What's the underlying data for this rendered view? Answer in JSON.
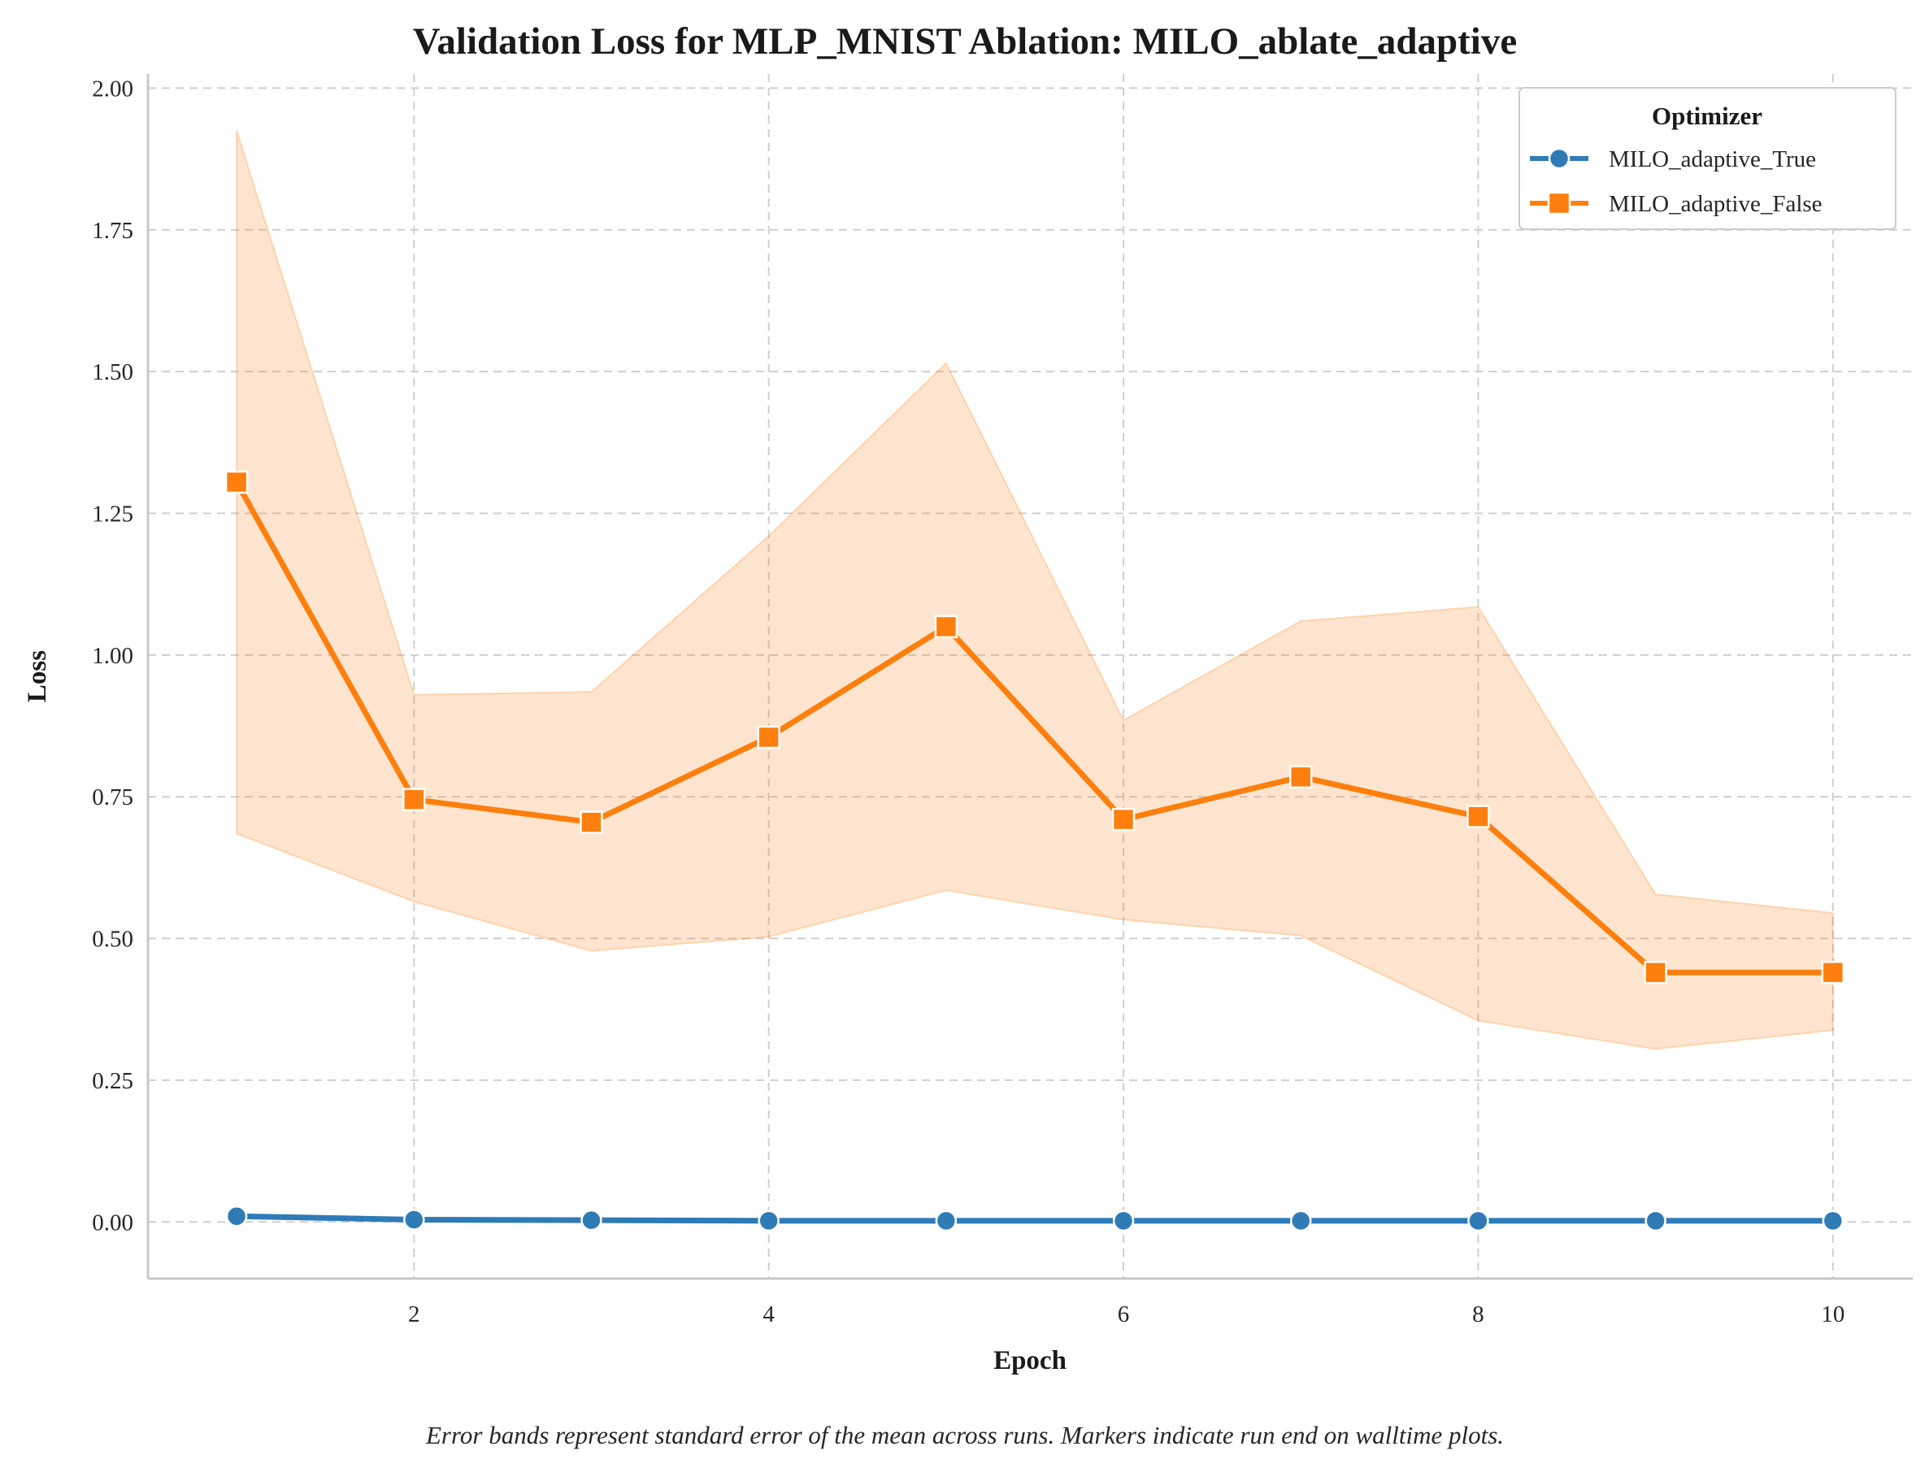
{
  "chart_data": {
    "type": "line",
    "title": "Validation Loss for MLP_MNIST Ablation: MILO_ablate_adaptive",
    "xlabel": "Epoch",
    "ylabel": "Loss",
    "xlim": [
      0.5,
      10.45
    ],
    "ylim": [
      -0.1,
      2.025
    ],
    "x_ticks": [
      2,
      4,
      6,
      8,
      10
    ],
    "y_ticks": [
      0.0,
      0.25,
      0.5,
      0.75,
      1.0,
      1.25,
      1.5,
      1.75,
      2.0
    ],
    "y_tick_labels": [
      "0.00",
      "0.25",
      "0.50",
      "0.75",
      "1.00",
      "1.25",
      "1.50",
      "1.75",
      "2.00"
    ],
    "x_tick_labels": [
      "2",
      "4",
      "6",
      "8",
      "10"
    ],
    "grid": true,
    "legend": {
      "title": "Optimizer",
      "placement": "top-right"
    },
    "x": [
      1,
      2,
      3,
      4,
      5,
      6,
      7,
      8,
      9,
      10
    ],
    "series": [
      {
        "name": "MILO_adaptive_True",
        "color": "#2f7bb6",
        "marker": "circle",
        "values": [
          0.01,
          0.004,
          0.003,
          0.002,
          0.002,
          0.002,
          0.002,
          0.002,
          0.002,
          0.002
        ],
        "lower": [
          0.008,
          0.003,
          0.002,
          0.001,
          0.001,
          0.001,
          0.001,
          0.001,
          0.001,
          0.001
        ],
        "upper": [
          0.012,
          0.005,
          0.004,
          0.003,
          0.003,
          0.003,
          0.003,
          0.003,
          0.003,
          0.003
        ]
      },
      {
        "name": "MILO_adaptive_False",
        "color": "#ff7f0e",
        "marker": "square",
        "values": [
          1.305,
          0.745,
          0.705,
          0.855,
          1.05,
          0.71,
          0.785,
          0.715,
          0.44,
          0.44
        ],
        "lower": [
          0.685,
          0.565,
          0.478,
          0.503,
          0.585,
          0.533,
          0.505,
          0.355,
          0.305,
          0.338
        ],
        "upper": [
          1.925,
          0.93,
          0.935,
          1.21,
          1.515,
          0.885,
          1.06,
          1.085,
          0.578,
          0.545
        ]
      }
    ],
    "caption": "Error bands represent standard error of the mean across runs. Markers indicate run end on walltime plots."
  }
}
